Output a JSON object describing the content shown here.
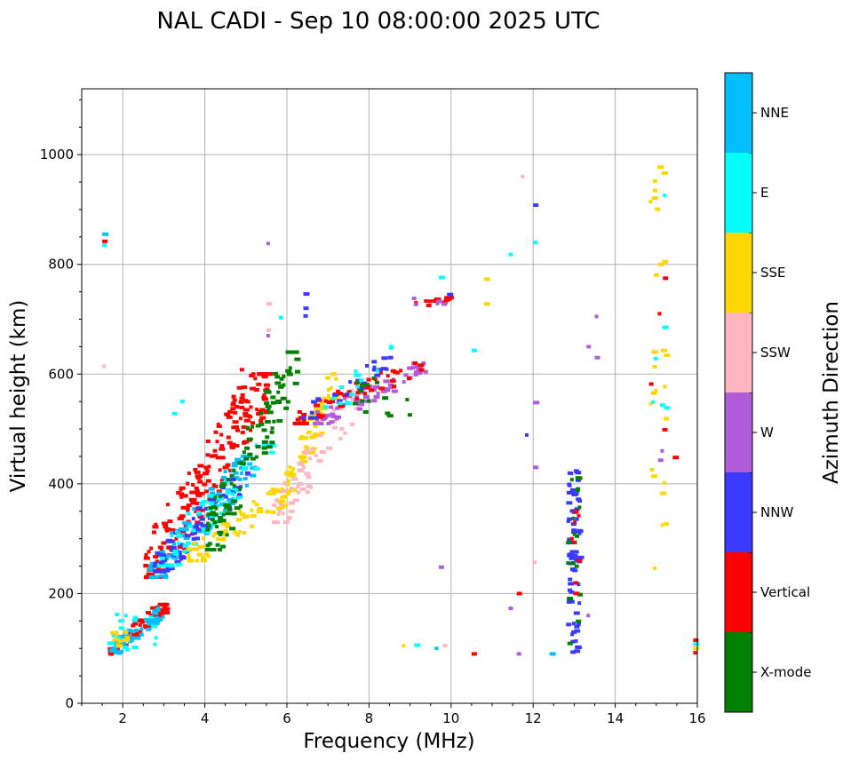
{
  "chart_data": {
    "type": "scatter",
    "title": "NAL CADI - Sep 10 08:00:00 2025 UTC",
    "xlabel": "Frequency (MHz)",
    "ylabel": "Virtual height (km)",
    "xlim": [
      1,
      16
    ],
    "ylim": [
      0,
      1120
    ],
    "xticks": [
      2,
      4,
      6,
      8,
      10,
      12,
      14,
      16
    ],
    "yticks": [
      0,
      200,
      400,
      600,
      800,
      1000
    ],
    "grid": true,
    "colorbar": {
      "label": "Azimuth Direction",
      "categories": [
        {
          "name": "X-mode",
          "color": "#008000"
        },
        {
          "name": "Vertical",
          "color": "#ff0000"
        },
        {
          "name": "NNW",
          "color": "#3a3aff"
        },
        {
          "name": "W",
          "color": "#b05cd8"
        },
        {
          "name": "SSW",
          "color": "#ffb6c1"
        },
        {
          "name": "SSE",
          "color": "#ffd700"
        },
        {
          "name": "E",
          "color": "#00ffff"
        },
        {
          "name": "NNE",
          "color": "#00bfff"
        }
      ]
    },
    "clusters": [
      {
        "category": "Vertical",
        "x": [
          1.6,
          3.0
        ],
        "y": [
          90,
          180
        ],
        "n": 70
      },
      {
        "category": "NNE",
        "x": [
          1.6,
          3.0
        ],
        "y": [
          90,
          175
        ],
        "n": 40
      },
      {
        "category": "E",
        "x": [
          1.6,
          2.8
        ],
        "y": [
          90,
          170
        ],
        "n": 20
      },
      {
        "category": "SSE",
        "x": [
          1.6,
          2.2
        ],
        "y": [
          90,
          130
        ],
        "n": 10
      },
      {
        "category": "Vertical",
        "x": [
          2.5,
          5.5
        ],
        "y": [
          230,
          600
        ],
        "n": 220
      },
      {
        "category": "NNE",
        "x": [
          2.6,
          5.2
        ],
        "y": [
          230,
          450
        ],
        "n": 100
      },
      {
        "category": "NNW",
        "x": [
          2.7,
          5.0
        ],
        "y": [
          240,
          420
        ],
        "n": 70
      },
      {
        "category": "E",
        "x": [
          2.8,
          5.6
        ],
        "y": [
          250,
          470
        ],
        "n": 60
      },
      {
        "category": "SSE",
        "x": [
          3.5,
          6.0
        ],
        "y": [
          260,
          390
        ],
        "n": 60
      },
      {
        "category": "X-mode",
        "x": [
          4.0,
          6.2
        ],
        "y": [
          280,
          640
        ],
        "n": 110
      },
      {
        "category": "SSE",
        "x": [
          5.8,
          7.2
        ],
        "y": [
          360,
          600
        ],
        "n": 70
      },
      {
        "category": "SSW",
        "x": [
          5.6,
          7.8
        ],
        "y": [
          330,
          570
        ],
        "n": 60
      },
      {
        "category": "W",
        "x": [
          6.6,
          9.4
        ],
        "y": [
          510,
          620
        ],
        "n": 70
      },
      {
        "category": "Vertical",
        "x": [
          6.0,
          9.3
        ],
        "y": [
          510,
          620
        ],
        "n": 50
      },
      {
        "category": "NNW",
        "x": [
          6.3,
          8.5
        ],
        "y": [
          520,
          630
        ],
        "n": 25
      },
      {
        "category": "X-mode",
        "x": [
          7.5,
          9.0
        ],
        "y": [
          520,
          600
        ],
        "n": 15
      },
      {
        "category": "E",
        "x": [
          6.8,
          8.5
        ],
        "y": [
          520,
          650
        ],
        "n": 15
      },
      {
        "category": "Vertical",
        "x": [
          9.0,
          10.0
        ],
        "y": [
          725,
          740
        ],
        "n": 14
      },
      {
        "category": "W",
        "x": [
          9.0,
          9.8
        ],
        "y": [
          725,
          740
        ],
        "n": 5
      },
      {
        "category": "NNW",
        "x": [
          12.8,
          13.1
        ],
        "y": [
          90,
          430
        ],
        "n": 70
      },
      {
        "category": "X-mode",
        "x": [
          12.8,
          13.1
        ],
        "y": [
          90,
          430
        ],
        "n": 18
      },
      {
        "category": "Vertical",
        "x": [
          12.8,
          13.1
        ],
        "y": [
          200,
          370
        ],
        "n": 8
      },
      {
        "category": "SSE",
        "x": [
          14.8,
          15.2
        ],
        "y": [
          210,
          985
        ],
        "n": 26
      },
      {
        "category": "E",
        "x": [
          14.8,
          15.2
        ],
        "y": [
          460,
          930
        ],
        "n": 6
      },
      {
        "category": "Vertical",
        "x": [
          14.8,
          15.2
        ],
        "y": [
          490,
          830
        ],
        "n": 4
      },
      {
        "category": "W",
        "x": [
          14.8,
          15.2
        ],
        "y": [
          420,
          470
        ],
        "n": 2
      }
    ],
    "points": [
      {
        "category": "NNE",
        "x": 1.5,
        "y": 855
      },
      {
        "category": "Vertical",
        "x": 1.5,
        "y": 842
      },
      {
        "category": "E",
        "x": 1.5,
        "y": 835
      },
      {
        "category": "SSW",
        "x": 1.5,
        "y": 614
      },
      {
        "category": "Vertical",
        "x": 4.85,
        "y": 608
      },
      {
        "category": "W",
        "x": 5.5,
        "y": 838
      },
      {
        "category": "SSW",
        "x": 5.5,
        "y": 728
      },
      {
        "category": "SSW",
        "x": 5.5,
        "y": 680
      },
      {
        "category": "W",
        "x": 5.5,
        "y": 670
      },
      {
        "category": "E",
        "x": 5.8,
        "y": 703
      },
      {
        "category": "NNW",
        "x": 6.4,
        "y": 746
      },
      {
        "category": "NNW",
        "x": 6.4,
        "y": 720
      },
      {
        "category": "NNW",
        "x": 6.4,
        "y": 706
      },
      {
        "category": "E",
        "x": 3.4,
        "y": 550
      },
      {
        "category": "E",
        "x": 3.2,
        "y": 528
      },
      {
        "category": "E",
        "x": 9.7,
        "y": 776
      },
      {
        "category": "NNW",
        "x": 9.9,
        "y": 745
      },
      {
        "category": "E",
        "x": 10.5,
        "y": 643
      },
      {
        "category": "SSE",
        "x": 10.8,
        "y": 773
      },
      {
        "category": "SSE",
        "x": 10.8,
        "y": 728
      },
      {
        "category": "SSW",
        "x": 11.7,
        "y": 960
      },
      {
        "category": "NNW",
        "x": 12.0,
        "y": 908
      },
      {
        "category": "E",
        "x": 12.0,
        "y": 840
      },
      {
        "category": "E",
        "x": 11.4,
        "y": 818
      },
      {
        "category": "W",
        "x": 12.0,
        "y": 548
      },
      {
        "category": "NNW",
        "x": 11.8,
        "y": 489
      },
      {
        "category": "W",
        "x": 12.0,
        "y": 430
      },
      {
        "category": "SSW",
        "x": 12.0,
        "y": 257
      },
      {
        "category": "W",
        "x": 13.5,
        "y": 705
      },
      {
        "category": "W",
        "x": 13.3,
        "y": 650
      },
      {
        "category": "W",
        "x": 13.5,
        "y": 630
      },
      {
        "category": "W",
        "x": 13.3,
        "y": 160
      },
      {
        "category": "Vertical",
        "x": 15.4,
        "y": 448
      },
      {
        "category": "W",
        "x": 9.7,
        "y": 248
      },
      {
        "category": "Vertical",
        "x": 11.6,
        "y": 200
      },
      {
        "category": "W",
        "x": 11.4,
        "y": 173
      },
      {
        "category": "SSE",
        "x": 8.8,
        "y": 105
      },
      {
        "category": "E",
        "x": 9.1,
        "y": 106
      },
      {
        "category": "NNE",
        "x": 9.6,
        "y": 100
      },
      {
        "category": "SSW",
        "x": 9.8,
        "y": 105
      },
      {
        "category": "Vertical",
        "x": 10.5,
        "y": 90
      },
      {
        "category": "W",
        "x": 11.6,
        "y": 90
      },
      {
        "category": "NNE",
        "x": 12.4,
        "y": 90
      },
      {
        "category": "Vertical",
        "x": 15.9,
        "y": 115
      },
      {
        "category": "E",
        "x": 15.9,
        "y": 108
      },
      {
        "category": "SSE",
        "x": 15.9,
        "y": 100
      },
      {
        "category": "Vertical",
        "x": 15.9,
        "y": 92
      }
    ]
  }
}
